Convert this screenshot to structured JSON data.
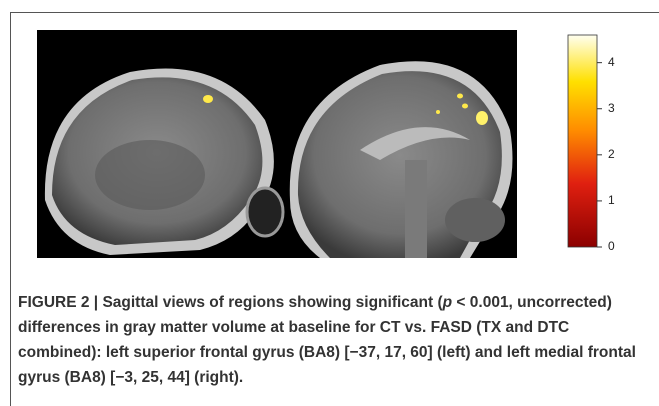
{
  "figure": {
    "colorbar": {
      "lim": [
        0,
        4.6
      ],
      "ticks": [
        0,
        1,
        2,
        3,
        4
      ]
    },
    "caption": {
      "label": "FIGURE 2 |",
      "text_before": "Sagittal views of regions showing significant (",
      "italic": "p",
      "text_after": " < 0.001, uncorrected) differences in gray matter volume at baseline for CT vs. FASD (TX and DTC combined): left superior frontal gyrus (BA8) [−37, 17, 60] (left) and left medial frontal gyrus (BA8) [−3, 25, 44] (right)."
    }
  }
}
